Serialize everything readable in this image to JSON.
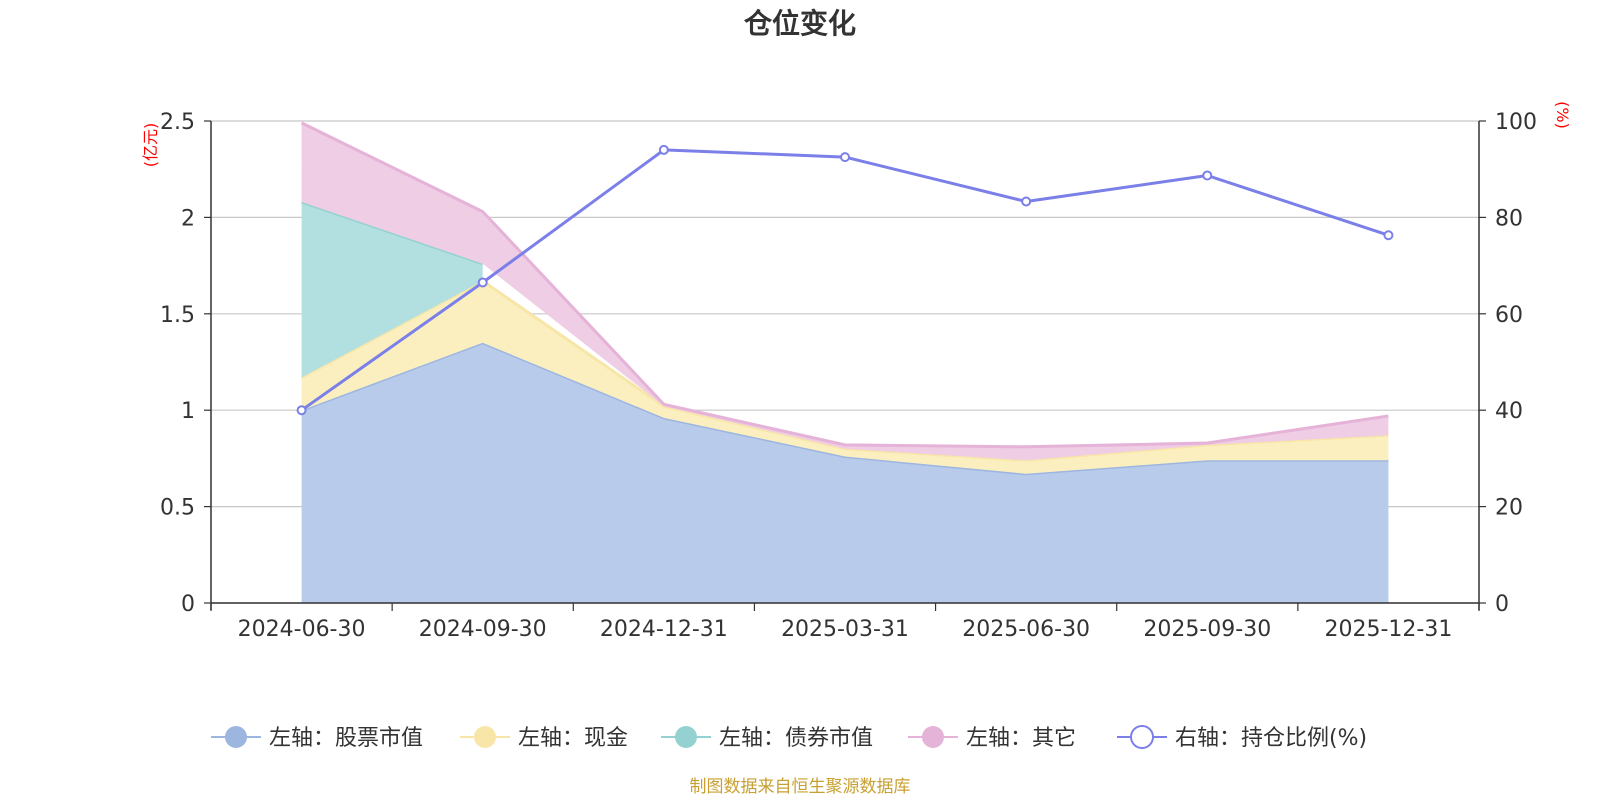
{
  "chart_data": {
    "type": "area",
    "title": "仓位变化",
    "left_unit": "(亿元)",
    "right_unit": "(%)",
    "categories": [
      "2024-06-30",
      "2024-09-30",
      "2024-12-31",
      "2025-03-31",
      "2025-06-30",
      "2025-09-30",
      "2025-12-31"
    ],
    "left_axis": {
      "min": 0,
      "max": 2.5,
      "ticks": [
        "0",
        "0.5",
        "1",
        "1.5",
        "2",
        "2.5"
      ]
    },
    "right_axis": {
      "min": 0,
      "max": 100,
      "ticks": [
        "0",
        "20",
        "40",
        "60",
        "80",
        "100"
      ]
    },
    "series": [
      {
        "name": "左轴：股票市值",
        "axis": "left",
        "kind": "stacked-area",
        "fill": "#b8cbea",
        "stroke": "#9db6e0",
        "values": [
          1.0,
          1.35,
          0.96,
          0.76,
          0.67,
          0.74,
          0.74
        ]
      },
      {
        "name": "左轴：现金",
        "axis": "left",
        "kind": "stacked-area",
        "fill": "#fbefc0",
        "stroke": "#f8e6a8",
        "values": [
          0.17,
          0.32,
          0.06,
          0.04,
          0.07,
          0.08,
          0.13
        ]
      },
      {
        "name": "左轴：债券市值",
        "axis": "left",
        "kind": "stacked-area",
        "fill": "#b2e0e0",
        "stroke": "#94d2d2",
        "values": [
          0.91,
          0.09,
          null,
          null,
          null,
          null,
          null
        ]
      },
      {
        "name": "左轴：其它",
        "axis": "left",
        "kind": "stacked-area",
        "fill": "#efcde4",
        "stroke": "#e5b2d8",
        "values": [
          0.41,
          0.27,
          0.01,
          0.02,
          0.07,
          0.01,
          0.1
        ]
      },
      {
        "name": "右轴：持仓比例(%)",
        "axis": "right",
        "kind": "line",
        "stroke": "#7b7fe8",
        "values": [
          40.0,
          66.5,
          94.0,
          92.5,
          83.3,
          88.7,
          76.3
        ]
      }
    ],
    "source": "制图数据来自恒生聚源数据库"
  }
}
